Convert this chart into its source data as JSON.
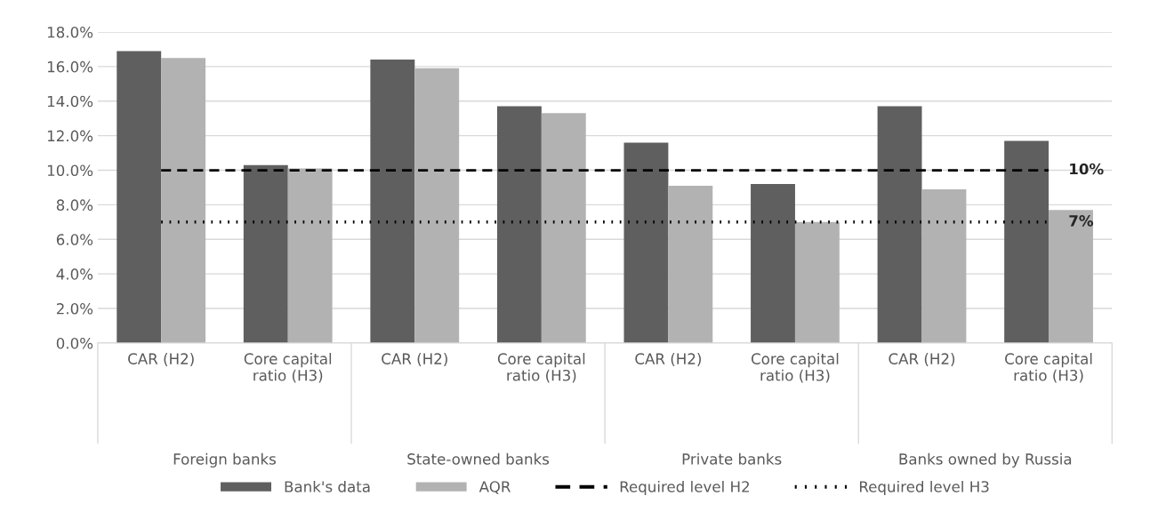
{
  "chart_data": {
    "type": "bar",
    "categories": [
      "CAR (H2)",
      "Core capital\nratio (H3)",
      "CAR (H2)",
      "Core capital\nratio (H3)",
      "CAR (H2)",
      "Core capital\nratio (H3)",
      "CAR (H2)",
      "Core capital\nratio (H3)"
    ],
    "annotations": [
      "Foreign banks",
      "State-owned banks",
      "Private banks",
      "Banks owned by Russia"
    ],
    "series": [
      {
        "name": "Bank's data",
        "color": "#5f5f5f",
        "values": [
          16.9,
          10.3,
          16.4,
          13.7,
          11.6,
          9.2,
          13.7,
          11.7
        ]
      },
      {
        "name": "AQR",
        "color": "#b2b2b2",
        "values": [
          16.5,
          10.1,
          15.9,
          13.3,
          9.1,
          7.0,
          8.9,
          7.7
        ]
      },
      {
        "name": "Required level H2",
        "type": "line",
        "line_style": "dashed",
        "color": "#000000",
        "values": [
          10,
          10,
          10,
          10,
          10,
          10,
          10,
          10
        ],
        "value_labels": [
          null,
          null,
          null,
          null,
          null,
          null,
          null,
          "10%"
        ]
      },
      {
        "name": "Required level H3",
        "type": "line",
        "line_style": "dotted",
        "color": "#000000",
        "values": [
          7,
          7,
          7,
          7,
          7,
          7,
          7,
          7
        ],
        "value_labels": [
          null,
          null,
          null,
          null,
          null,
          null,
          null,
          "7%"
        ]
      }
    ],
    "ylim": [
      0,
      18
    ],
    "yticks": [
      {
        "value": 0,
        "label": "0.0%"
      },
      {
        "value": 2,
        "label": "2.0%"
      },
      {
        "value": 4,
        "label": "4.0%"
      },
      {
        "value": 6,
        "label": "6.0%"
      },
      {
        "value": 8,
        "label": "8.0%"
      },
      {
        "value": 10,
        "label": "10.0%"
      },
      {
        "value": 12,
        "label": "12.0%"
      },
      {
        "value": 14,
        "label": "14.0%"
      },
      {
        "value": 16,
        "label": "16.0%"
      },
      {
        "value": 18,
        "label": "18.0%"
      }
    ],
    "grid": "y",
    "legend": "bottom"
  }
}
